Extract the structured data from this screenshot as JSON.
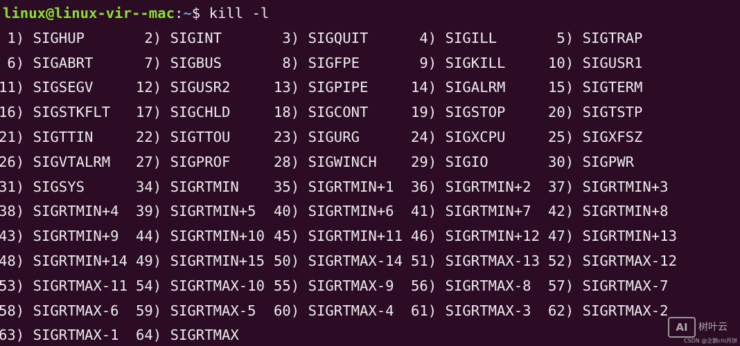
{
  "prompt": {
    "user_host": "linux@linux-vir--mac",
    "separator": ":",
    "path": "~",
    "symbol": "$",
    "command": "kill -l"
  },
  "rows": [
    [
      [
        "1)",
        "SIGHUP"
      ],
      [
        "2)",
        "SIGINT"
      ],
      [
        "3)",
        "SIGQUIT"
      ],
      [
        "4)",
        "SIGILL"
      ],
      [
        "5)",
        "SIGTRAP"
      ]
    ],
    [
      [
        "6)",
        "SIGABRT"
      ],
      [
        "7)",
        "SIGBUS"
      ],
      [
        "8)",
        "SIGFPE"
      ],
      [
        "9)",
        "SIGKILL"
      ],
      [
        "10)",
        "SIGUSR1"
      ]
    ],
    [
      [
        "11)",
        "SIGSEGV"
      ],
      [
        "12)",
        "SIGUSR2"
      ],
      [
        "13)",
        "SIGPIPE"
      ],
      [
        "14)",
        "SIGALRM"
      ],
      [
        "15)",
        "SIGTERM"
      ]
    ],
    [
      [
        "16)",
        "SIGSTKFLT"
      ],
      [
        "17)",
        "SIGCHLD"
      ],
      [
        "18)",
        "SIGCONT"
      ],
      [
        "19)",
        "SIGSTOP"
      ],
      [
        "20)",
        "SIGTSTP"
      ]
    ],
    [
      [
        "21)",
        "SIGTTIN"
      ],
      [
        "22)",
        "SIGTTOU"
      ],
      [
        "23)",
        "SIGURG"
      ],
      [
        "24)",
        "SIGXCPU"
      ],
      [
        "25)",
        "SIGXFSZ"
      ]
    ],
    [
      [
        "26)",
        "SIGVTALRM"
      ],
      [
        "27)",
        "SIGPROF"
      ],
      [
        "28)",
        "SIGWINCH"
      ],
      [
        "29)",
        "SIGIO"
      ],
      [
        "30)",
        "SIGPWR"
      ]
    ],
    [
      [
        "31)",
        "SIGSYS"
      ],
      [
        "34)",
        "SIGRTMIN"
      ],
      [
        "35)",
        "SIGRTMIN+1"
      ],
      [
        "36)",
        "SIGRTMIN+2"
      ],
      [
        "37)",
        "SIGRTMIN+3"
      ]
    ],
    [
      [
        "38)",
        "SIGRTMIN+4"
      ],
      [
        "39)",
        "SIGRTMIN+5"
      ],
      [
        "40)",
        "SIGRTMIN+6"
      ],
      [
        "41)",
        "SIGRTMIN+7"
      ],
      [
        "42)",
        "SIGRTMIN+8"
      ]
    ],
    [
      [
        "43)",
        "SIGRTMIN+9"
      ],
      [
        "44)",
        "SIGRTMIN+10"
      ],
      [
        "45)",
        "SIGRTMIN+11"
      ],
      [
        "46)",
        "SIGRTMIN+12"
      ],
      [
        "47)",
        "SIGRTMIN+13"
      ]
    ],
    [
      [
        "48)",
        "SIGRTMIN+14"
      ],
      [
        "49)",
        "SIGRTMIN+15"
      ],
      [
        "50)",
        "SIGRTMAX-14"
      ],
      [
        "51)",
        "SIGRTMAX-13"
      ],
      [
        "52)",
        "SIGRTMAX-12"
      ]
    ],
    [
      [
        "53)",
        "SIGRTMAX-11"
      ],
      [
        "54)",
        "SIGRTMAX-10"
      ],
      [
        "55)",
        "SIGRTMAX-9"
      ],
      [
        "56)",
        "SIGRTMAX-8"
      ],
      [
        "57)",
        "SIGRTMAX-7"
      ]
    ],
    [
      [
        "58)",
        "SIGRTMAX-6"
      ],
      [
        "59)",
        "SIGRTMAX-5"
      ],
      [
        "60)",
        "SIGRTMAX-4"
      ],
      [
        "61)",
        "SIGRTMAX-3"
      ],
      [
        "62)",
        "SIGRTMAX-2"
      ]
    ],
    [
      [
        "63)",
        "SIGRTMAX-1"
      ],
      [
        "64)",
        "SIGRTMAX"
      ]
    ]
  ],
  "watermark": {
    "logo": "AI",
    "brand": "树叶云",
    "credit": "CSDN @企鹅chi月饼"
  }
}
